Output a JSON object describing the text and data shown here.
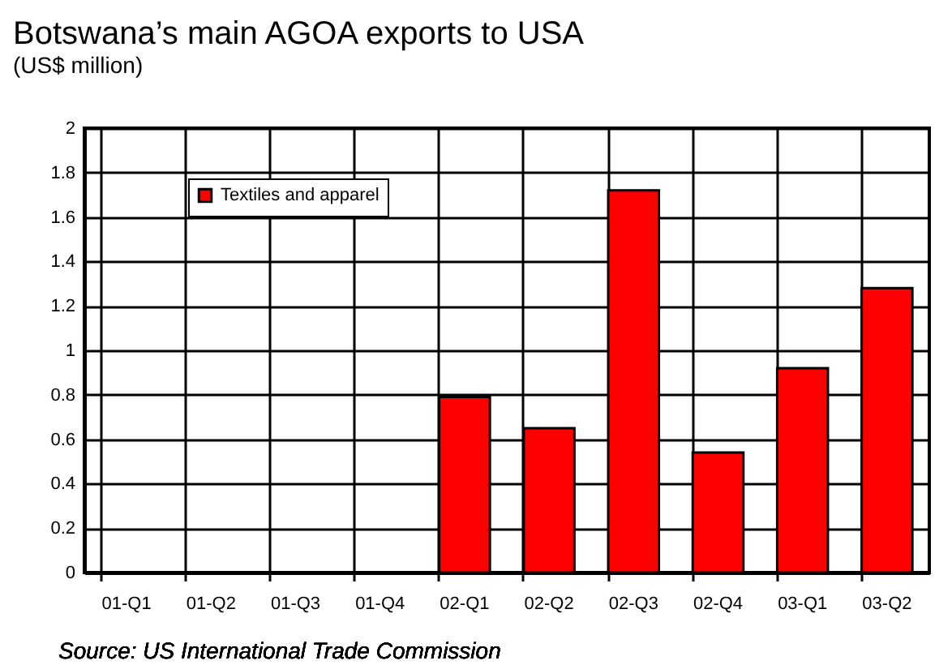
{
  "chart_data": {
    "type": "bar",
    "title": "Botswana’s main AGOA exports to USA",
    "subtitle": "(US$ million)",
    "categories": [
      "01-Q1",
      "01-Q2",
      "01-Q3",
      "01-Q4",
      "02-Q1",
      "02-Q2",
      "02-Q3",
      "02-Q4",
      "03-Q1",
      "03-Q2"
    ],
    "series": [
      {
        "name": "Textiles and apparel",
        "color": "#ff0000",
        "values": [
          null,
          null,
          null,
          null,
          0.79,
          0.65,
          1.72,
          0.54,
          0.92,
          1.28
        ]
      }
    ],
    "ylim": [
      0,
      2
    ],
    "yticks": [
      0,
      0.2,
      0.4,
      0.6,
      0.8,
      1,
      1.2,
      1.4,
      1.6,
      1.8,
      2
    ],
    "grid": true,
    "legend": "top left",
    "annotations": [
      "Source: US International Trade Commission"
    ]
  }
}
